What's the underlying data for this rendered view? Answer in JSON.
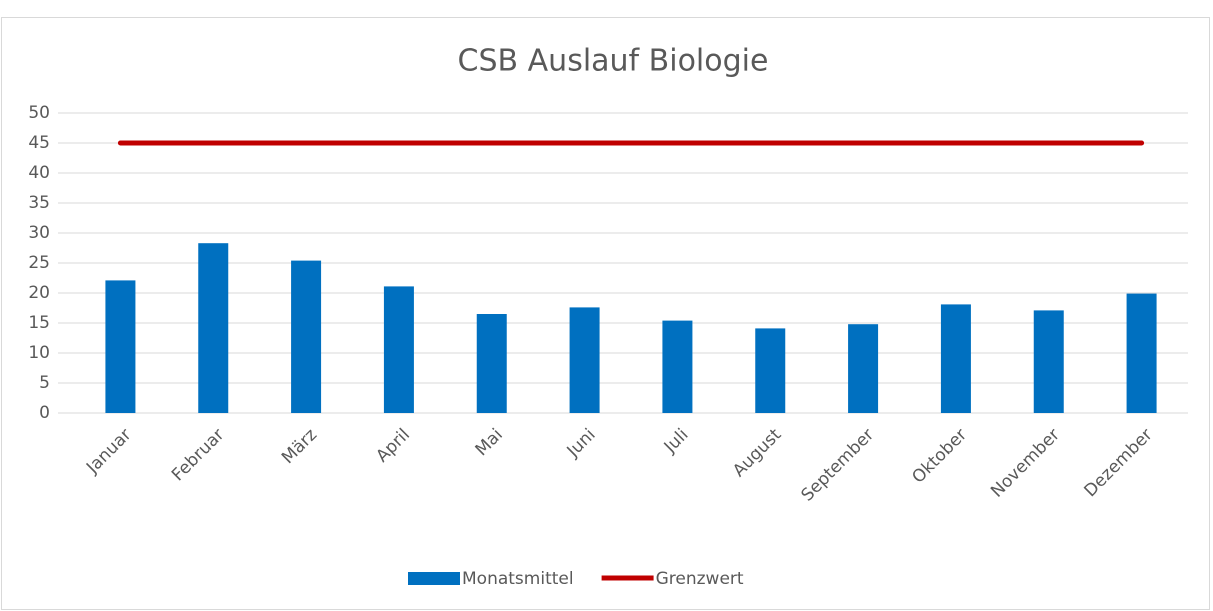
{
  "chart_data": {
    "type": "combo",
    "title": "CSB Auslauf Biologie",
    "categories": [
      "Januar",
      "Februar",
      "März",
      "April",
      "Mai",
      "Juni",
      "Juli",
      "August",
      "September",
      "Oktober",
      "November",
      "Dezember"
    ],
    "series": [
      {
        "name": "Monatsmittel",
        "type": "bar",
        "color": "#0070c0",
        "values": [
          22.1,
          28.3,
          25.4,
          21.1,
          16.5,
          17.6,
          15.4,
          14.1,
          14.8,
          18.1,
          17.1,
          19.9
        ]
      },
      {
        "name": "Grenzwert",
        "type": "line",
        "color": "#c00000",
        "values": [
          45,
          45,
          45,
          45,
          45,
          45,
          45,
          45,
          45,
          45,
          45,
          45
        ]
      }
    ],
    "ylim": [
      0,
      50
    ],
    "yticks": [
      0,
      5,
      10,
      15,
      20,
      25,
      30,
      35,
      40,
      45,
      50
    ],
    "grid": true,
    "legend": "bottom"
  }
}
